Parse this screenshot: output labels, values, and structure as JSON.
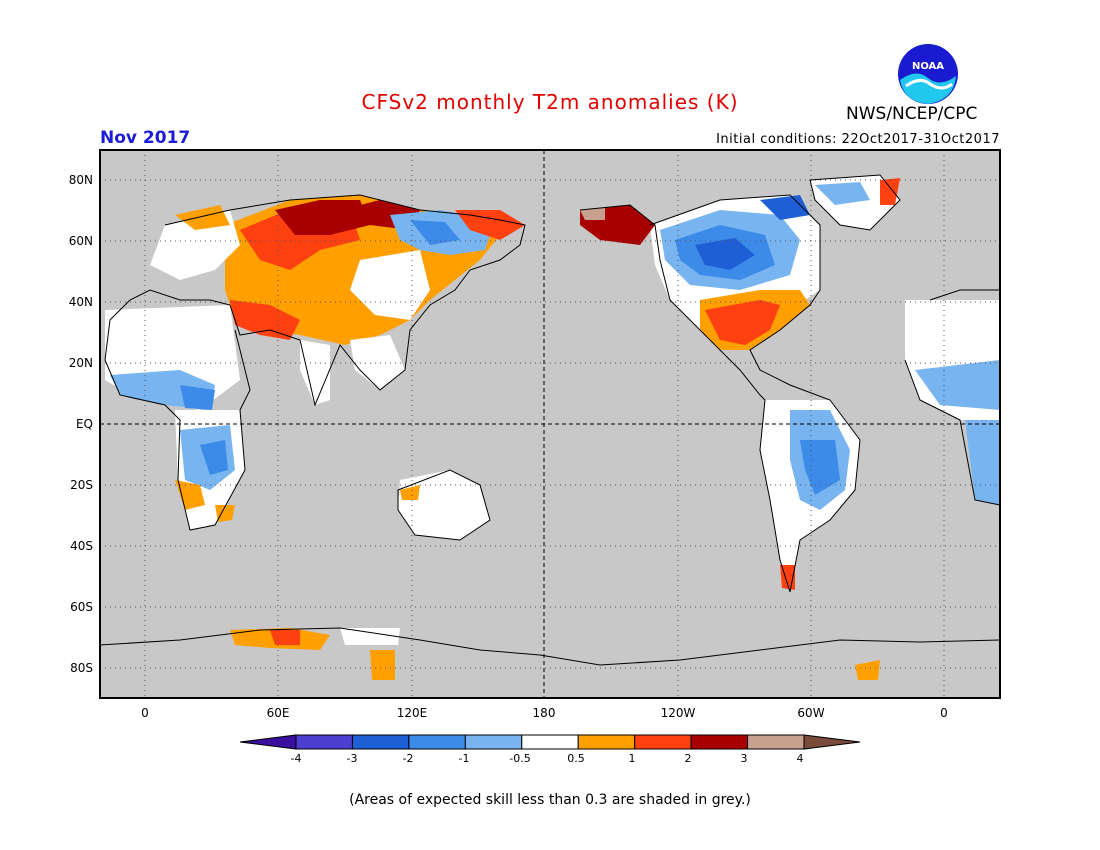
{
  "header": {
    "title": "CFSv2 monthly T2m anomalies (K)",
    "month": "Nov 2017",
    "initial_conditions": "Initial conditions: 22Oct2017-31Oct2017",
    "agency": "NWS/NCEP/CPC",
    "logo_text": "NOAA"
  },
  "map": {
    "lat_labels": [
      "80N",
      "60N",
      "40N",
      "20N",
      "EQ",
      "20S",
      "40S",
      "60S",
      "80S"
    ],
    "lon_labels": [
      "0",
      "60E",
      "120E",
      "180",
      "120W",
      "60W",
      "0"
    ],
    "background_color": "#c8c8c8"
  },
  "legend": {
    "tick_labels": [
      "-4",
      "-3",
      "-2",
      "-1",
      "-0.5",
      "0.5",
      "1",
      "2",
      "3",
      "4"
    ],
    "colors": [
      "#3a0fa0",
      "#4b3fd0",
      "#1f5fd6",
      "#3c8be8",
      "#78b4f0",
      "#ffffff",
      "#ff9f00",
      "#ff4010",
      "#a80000",
      "#c8a090",
      "#7a4a3a"
    ]
  },
  "footnote": "(Areas of expected skill less than 0.3 are shaded in grey.)"
}
